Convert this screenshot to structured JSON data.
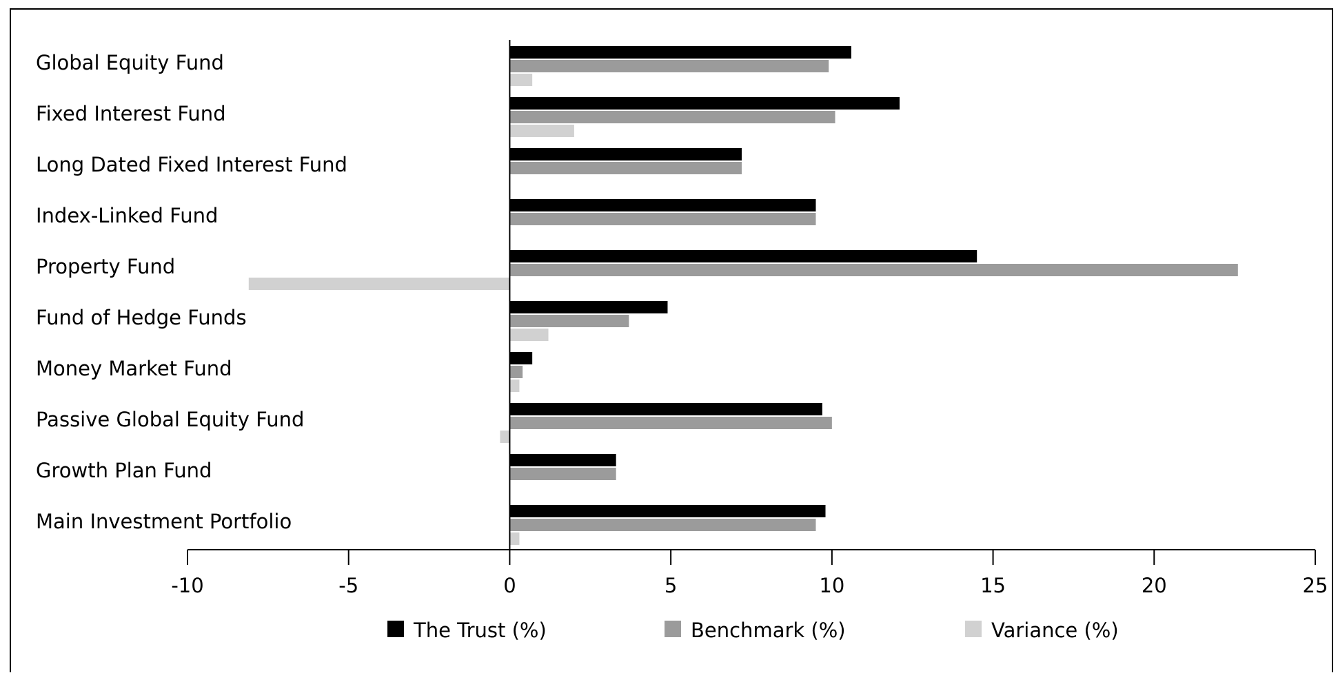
{
  "chart_data": {
    "type": "bar",
    "orientation": "horizontal",
    "categories": [
      "Global Equity Fund",
      "Fixed Interest Fund",
      "Long Dated Fixed Interest Fund",
      "Index-Linked Fund",
      "Property Fund",
      "Fund of Hedge Funds",
      "Money Market Fund",
      "Passive Global Equity Fund",
      "Growth Plan Fund",
      "Main Investment Portfolio"
    ],
    "series": [
      {
        "name": "The Trust (%)",
        "color": "#000000",
        "values": [
          10.6,
          12.1,
          7.2,
          9.5,
          14.5,
          4.9,
          0.7,
          9.7,
          3.3,
          9.8
        ]
      },
      {
        "name": "Benchmark (%)",
        "color": "#9b9b9b",
        "values": [
          9.9,
          10.1,
          7.2,
          9.5,
          22.6,
          3.7,
          0.4,
          10.0,
          3.3,
          9.5
        ]
      },
      {
        "name": "Variance (%)",
        "color": "#d1d1d1",
        "values": [
          0.7,
          2.0,
          0.0,
          0.0,
          -8.1,
          1.2,
          0.3,
          -0.3,
          0.0,
          0.3
        ]
      }
    ],
    "xlim": [
      -10,
      25
    ],
    "xticks": [
      "-10",
      "-5",
      "0",
      "5",
      "10",
      "15",
      "20",
      "25"
    ],
    "grid": false,
    "legend_position": "bottom"
  }
}
